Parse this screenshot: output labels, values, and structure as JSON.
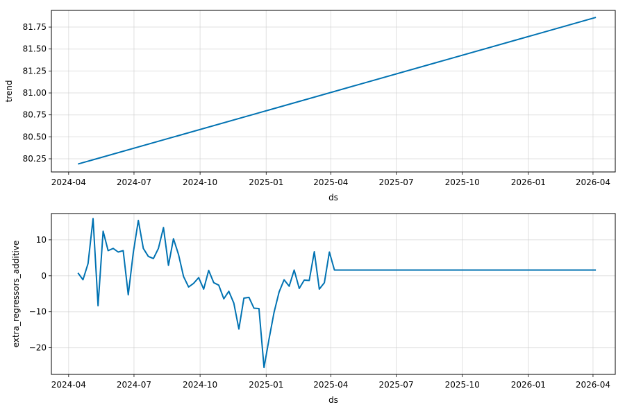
{
  "chart_data": [
    {
      "type": "line",
      "xlabel": "ds",
      "ylabel": "trend",
      "grid": true,
      "line_color": "#0072B2",
      "x_ticks": [
        "2024-04",
        "2024-07",
        "2024-10",
        "2025-01",
        "2025-04",
        "2025-07",
        "2025-10",
        "2026-01",
        "2026-04"
      ],
      "y_ticks": [
        "80.25",
        "80.50",
        "80.75",
        "81.00",
        "81.25",
        "81.50",
        "81.75"
      ],
      "xlim": [
        "2024-03-08",
        "2026-05-02"
      ],
      "ylim": [
        80.1,
        81.94
      ],
      "series": [
        {
          "x": [
            "2024-04-14",
            "2026-04-05"
          ],
          "values": [
            80.19,
            81.86
          ]
        }
      ]
    },
    {
      "type": "line",
      "xlabel": "ds",
      "ylabel": "extra_regressors_additive",
      "grid": true,
      "line_color": "#0072B2",
      "x_ticks": [
        "2024-04",
        "2024-07",
        "2024-10",
        "2025-01",
        "2025-04",
        "2025-07",
        "2025-10",
        "2026-01",
        "2026-04"
      ],
      "y_ticks": [
        "−20",
        "−10",
        "0",
        "10"
      ],
      "xlim": [
        "2024-03-08",
        "2026-05-02"
      ],
      "ylim": [
        -27.4,
        17.3
      ],
      "series": [
        {
          "x": [
            "2024-04-14",
            "2024-04-21",
            "2024-04-28",
            "2024-05-05",
            "2024-05-12",
            "2024-05-19",
            "2024-05-26",
            "2024-06-02",
            "2024-06-09",
            "2024-06-16",
            "2024-06-23",
            "2024-06-30",
            "2024-07-07",
            "2024-07-14",
            "2024-07-21",
            "2024-07-28",
            "2024-08-04",
            "2024-08-11",
            "2024-08-18",
            "2024-08-25",
            "2024-09-01",
            "2024-09-08",
            "2024-09-15",
            "2024-09-22",
            "2024-09-29",
            "2024-10-06",
            "2024-10-13",
            "2024-10-20",
            "2024-10-27",
            "2024-11-03",
            "2024-11-10",
            "2024-11-17",
            "2024-11-24",
            "2024-12-01",
            "2024-12-08",
            "2024-12-15",
            "2024-12-22",
            "2024-12-29",
            "2025-01-05",
            "2025-01-12",
            "2025-01-19",
            "2025-01-26",
            "2025-02-02",
            "2025-02-09",
            "2025-02-16",
            "2025-02-23",
            "2025-03-02",
            "2025-03-09",
            "2025-03-16",
            "2025-03-23",
            "2025-03-30",
            "2025-04-06",
            "2026-04-05"
          ],
          "values": [
            0.8,
            -1.1,
            3.4,
            15.9,
            -8.3,
            12.4,
            7.0,
            7.6,
            6.6,
            7.0,
            -5.3,
            6.4,
            15.4,
            7.6,
            5.4,
            4.8,
            7.6,
            13.4,
            2.9,
            10.3,
            5.9,
            -0.2,
            -3.1,
            -2.1,
            -0.5,
            -3.7,
            1.5,
            -1.9,
            -2.6,
            -6.4,
            -4.3,
            -7.6,
            -14.8,
            -6.2,
            -6.0,
            -9.0,
            -9.1,
            -25.5,
            -17.6,
            -10.1,
            -4.5,
            -1.1,
            -2.9,
            1.6,
            -3.5,
            -1.2,
            -1.3,
            6.7,
            -3.7,
            -1.9,
            6.6,
            1.6,
            1.6
          ]
        }
      ]
    }
  ]
}
